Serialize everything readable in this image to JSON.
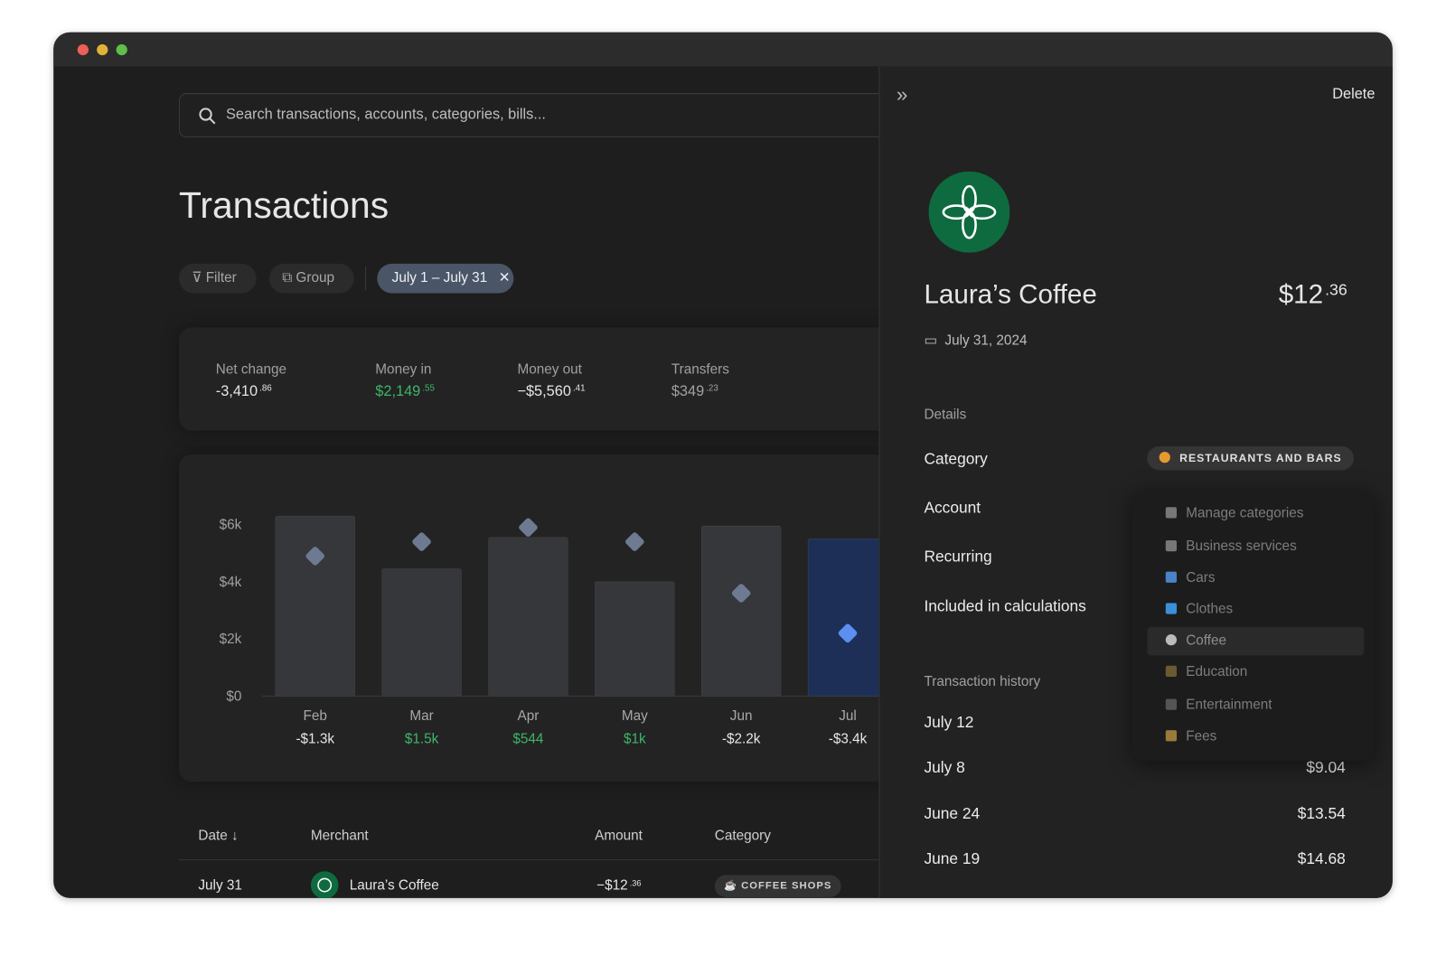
{
  "window": {
    "search_placeholder": "Search transactions, accounts, categories, bills...",
    "title": "Transactions",
    "filters": {
      "filter": "Filter",
      "group": "Group",
      "date_range": "July 1 – July 31"
    },
    "summary": [
      {
        "label": "Net change",
        "value": "-3,410",
        "cents": ".86"
      },
      {
        "label": "Money in",
        "value": "$2,149",
        "cents": ".55"
      },
      {
        "label": "Money out",
        "value": "−$5,560",
        "cents": ".41"
      },
      {
        "label": "Transfers",
        "value": "$349",
        "cents": ".23"
      }
    ],
    "table": {
      "headers": [
        "Date",
        "Merchant",
        "Amount",
        "Category"
      ],
      "rows": [
        {
          "date": "July 31",
          "merchant": "Laura’s Coffee",
          "amount": "−$12",
          "cents": ".36",
          "category": "COFFEE SHOPS"
        }
      ]
    }
  },
  "chart_data": {
    "type": "bar",
    "categories": [
      "Feb",
      "Mar",
      "Apr",
      "May",
      "Jun",
      "Jul"
    ],
    "series": [
      {
        "type": "bar",
        "colors": [
          "#36373b",
          "#36373b",
          "#36373b",
          "#36373b",
          "#36373b",
          "#1d2f57"
        ],
        "values": [
          6300,
          4450,
          5550,
          4000,
          5950,
          5500
        ]
      },
      {
        "type": "marker",
        "colors": [
          "#6d7a92",
          "#6d7a92",
          "#6d7a92",
          "#6d7a92",
          "#6d7a92",
          "#5b8ff0"
        ],
        "values": [
          4900,
          5400,
          5900,
          5400,
          3600,
          2200
        ]
      }
    ],
    "net": {
      "values": [
        -1300,
        1500,
        544,
        1000,
        -2200,
        -3400
      ],
      "value_labels": [
        "-$1.3k",
        "$1.5k",
        "$544",
        "$1k",
        "-$2.2k",
        "-$3.4k"
      ]
    },
    "ylim": [
      0,
      7000
    ],
    "yticks": [
      {
        "value": 0,
        "label": "$0"
      },
      {
        "value": 2000,
        "label": "$2k"
      },
      {
        "value": 4000,
        "label": "$4k"
      },
      {
        "value": 6000,
        "label": "$6k"
      }
    ]
  },
  "panel": {
    "delete": "Delete",
    "merchant": "Laura’s Coffee",
    "amount": "$12",
    "cents": ".36",
    "date": "July 31, 2024",
    "details": "Details",
    "rows": [
      "Category",
      "Account",
      "Recurring",
      "Included in calculations"
    ],
    "category_pill": "RESTAURANTS AND BARS",
    "dropdown": [
      "Manage categories",
      "Business services",
      "Cars",
      "Clothes",
      "Coffee",
      "Education",
      "Entertainment",
      "Fees"
    ],
    "history_title": "Transaction history",
    "history": [
      {
        "date": "July 12"
      },
      {
        "date": "July 8",
        "amount": "$9.04"
      },
      {
        "date": "June 24",
        "amount": "$13.54"
      },
      {
        "date": "June 19",
        "amount": "$14.68"
      }
    ]
  }
}
